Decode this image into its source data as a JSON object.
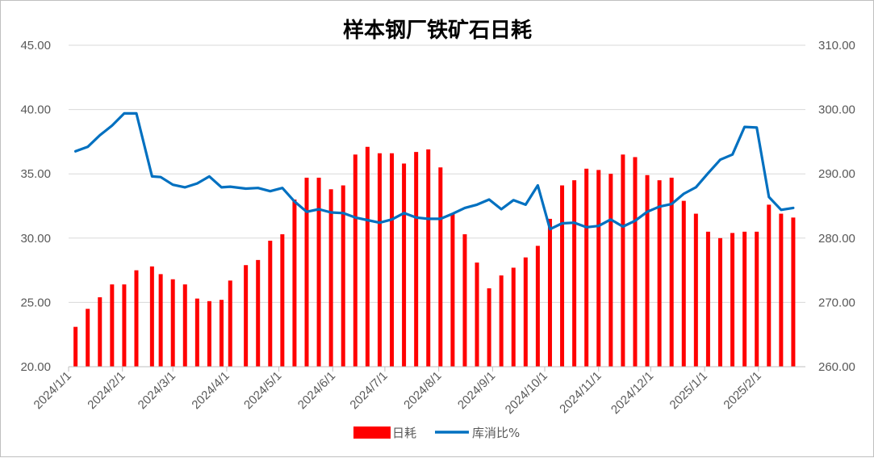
{
  "chart_data": {
    "type": "bar+line",
    "title": "样本钢厂铁矿石日耗",
    "left_axis": {
      "min": 20,
      "max": 45,
      "ticks": [
        "20.00",
        "25.00",
        "30.00",
        "35.00",
        "40.00",
        "45.00"
      ]
    },
    "right_axis": {
      "min": 260,
      "max": 310,
      "ticks": [
        "260.00",
        "270.00",
        "280.00",
        "290.00",
        "300.00",
        "310.00"
      ]
    },
    "x_axis": {
      "start": "2024-01-01",
      "end": "2025-02-28",
      "tick_labels": [
        "2024/1/1",
        "2024/2/1",
        "2024/3/1",
        "2024/4/1",
        "2024/5/1",
        "2024/6/1",
        "2024/7/1",
        "2024/8/1",
        "2024/9/1",
        "2024/10/1",
        "2024/11/1",
        "2024/12/1",
        "2025/1/1",
        "2025/2/1"
      ],
      "tick_dates": [
        "2024-01-01",
        "2024-02-01",
        "2024-03-01",
        "2024-04-01",
        "2024-05-01",
        "2024-06-01",
        "2024-07-01",
        "2024-08-01",
        "2024-09-01",
        "2024-10-01",
        "2024-11-01",
        "2024-12-01",
        "2025-01-01",
        "2025-02-01"
      ]
    },
    "series": [
      {
        "name": "日耗",
        "kind": "bar",
        "axis": "left",
        "color": "#ff0000",
        "dates": [
          "2024-01-05",
          "2024-01-12",
          "2024-01-19",
          "2024-01-26",
          "2024-02-02",
          "2024-02-09",
          "2024-02-18",
          "2024-02-23",
          "2024-03-01",
          "2024-03-08",
          "2024-03-15",
          "2024-03-22",
          "2024-03-29",
          "2024-04-03",
          "2024-04-12",
          "2024-04-19",
          "2024-04-26",
          "2024-05-03",
          "2024-05-10",
          "2024-05-17",
          "2024-05-24",
          "2024-05-31",
          "2024-06-07",
          "2024-06-14",
          "2024-06-21",
          "2024-06-28",
          "2024-07-05",
          "2024-07-12",
          "2024-07-19",
          "2024-07-26",
          "2024-08-02",
          "2024-08-09",
          "2024-08-16",
          "2024-08-23",
          "2024-08-30",
          "2024-09-06",
          "2024-09-13",
          "2024-09-20",
          "2024-09-27",
          "2024-10-04",
          "2024-10-11",
          "2024-10-18",
          "2024-10-25",
          "2024-11-01",
          "2024-11-08",
          "2024-11-15",
          "2024-11-22",
          "2024-11-29",
          "2024-12-06",
          "2024-12-13",
          "2024-12-20",
          "2024-12-27",
          "2025-01-03",
          "2025-01-10",
          "2025-01-17",
          "2025-01-24",
          "2025-01-31",
          "2025-02-07",
          "2025-02-14",
          "2025-02-21"
        ],
        "values": [
          23.1,
          24.5,
          25.4,
          26.4,
          26.4,
          27.5,
          27.8,
          27.2,
          26.8,
          26.4,
          25.3,
          25.1,
          25.2,
          26.7,
          27.9,
          28.3,
          29.8,
          30.3,
          33.0,
          34.7,
          34.7,
          33.8,
          34.1,
          36.5,
          37.1,
          36.6,
          36.6,
          35.8,
          36.7,
          36.9,
          35.5,
          31.9,
          30.3,
          28.1,
          26.1,
          27.1,
          27.7,
          28.5,
          29.4,
          31.5,
          34.1,
          34.5,
          35.4,
          35.3,
          35.0,
          36.5,
          36.3,
          34.9,
          34.5,
          34.7,
          32.9,
          31.9,
          30.5,
          30.0,
          30.4,
          30.5,
          30.5,
          32.6,
          31.9,
          31.6
        ]
      },
      {
        "name": "库消比%",
        "kind": "line",
        "axis": "right",
        "color": "#0070c0",
        "dates": [
          "2024-01-05",
          "2024-01-12",
          "2024-01-19",
          "2024-01-26",
          "2024-02-02",
          "2024-02-09",
          "2024-02-18",
          "2024-02-23",
          "2024-03-01",
          "2024-03-08",
          "2024-03-15",
          "2024-03-22",
          "2024-03-29",
          "2024-04-03",
          "2024-04-12",
          "2024-04-19",
          "2024-04-26",
          "2024-05-03",
          "2024-05-10",
          "2024-05-17",
          "2024-05-24",
          "2024-05-31",
          "2024-06-07",
          "2024-06-14",
          "2024-06-21",
          "2024-06-28",
          "2024-07-05",
          "2024-07-12",
          "2024-07-19",
          "2024-07-26",
          "2024-08-02",
          "2024-08-09",
          "2024-08-16",
          "2024-08-23",
          "2024-08-30",
          "2024-09-06",
          "2024-09-13",
          "2024-09-20",
          "2024-09-27",
          "2024-10-04",
          "2024-10-11",
          "2024-10-18",
          "2024-10-25",
          "2024-11-01",
          "2024-11-08",
          "2024-11-15",
          "2024-11-22",
          "2024-11-29",
          "2024-12-06",
          "2024-12-13",
          "2024-12-20",
          "2024-12-27",
          "2025-01-03",
          "2025-01-10",
          "2025-01-17",
          "2025-01-24",
          "2025-01-31",
          "2025-02-07",
          "2025-02-14",
          "2025-02-21"
        ],
        "values": [
          293.5,
          294.2,
          296.0,
          297.5,
          299.4,
          299.4,
          289.6,
          289.5,
          288.3,
          287.9,
          288.5,
          289.6,
          287.9,
          288.0,
          287.7,
          287.8,
          287.3,
          287.8,
          285.7,
          284.1,
          284.5,
          284.0,
          283.9,
          283.2,
          282.8,
          282.4,
          282.9,
          283.9,
          283.2,
          283.0,
          283.0,
          283.8,
          284.7,
          285.2,
          286.0,
          284.5,
          285.9,
          285.2,
          288.2,
          281.4,
          282.3,
          282.4,
          281.7,
          281.9,
          282.9,
          281.8,
          282.7,
          284.1,
          284.9,
          285.3,
          286.9,
          287.9,
          290.1,
          292.2,
          293.0,
          297.3,
          297.2,
          286.4,
          284.4,
          284.7
        ]
      }
    ],
    "legend": {
      "position": "bottom",
      "entries": [
        "日耗",
        "库消比%"
      ]
    }
  }
}
